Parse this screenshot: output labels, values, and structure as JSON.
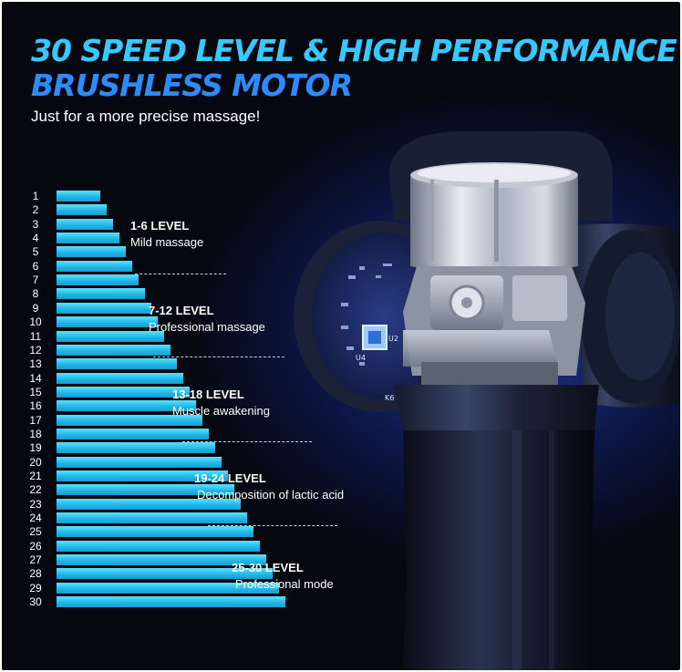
{
  "headline": {
    "line1": "30 SPEED LEVEL & HIGH PERFORMANCE",
    "line2": "BRUSHLESS MOTOR",
    "subtitle": "Just for a more precise massage!"
  },
  "speed_levels": [
    "1",
    "2",
    "3",
    "4",
    "5",
    "6",
    "7",
    "8",
    "9",
    "10",
    "11",
    "12",
    "13",
    "14",
    "15",
    "16",
    "17",
    "18",
    "19",
    "20",
    "21",
    "22",
    "23",
    "24",
    "25",
    "26",
    "27",
    "28",
    "29",
    "30"
  ],
  "level_groups": [
    {
      "range": "1-6 LEVEL",
      "description": "Mild massage"
    },
    {
      "range": "7-12 LEVEL",
      "description": "Professional massage"
    },
    {
      "range": "13-18 LEVEL",
      "description": "Muscle awakening"
    },
    {
      "range": "19-24 LEVEL",
      "description": "Decomposition of lactic acid"
    },
    {
      "range": "25-30 LEVEL",
      "description": "Professional mode"
    }
  ],
  "board_labels": [
    "U4",
    "U2",
    "K6"
  ],
  "colors": {
    "background": "#05080f",
    "title_primary": "#35c9ff",
    "title_secondary": "#2c8cff",
    "bar": "#1fb5e6",
    "glow": "#2846be"
  },
  "icons": [
    "massage-gun-image",
    "motor-image",
    "circuit-board-image"
  ]
}
